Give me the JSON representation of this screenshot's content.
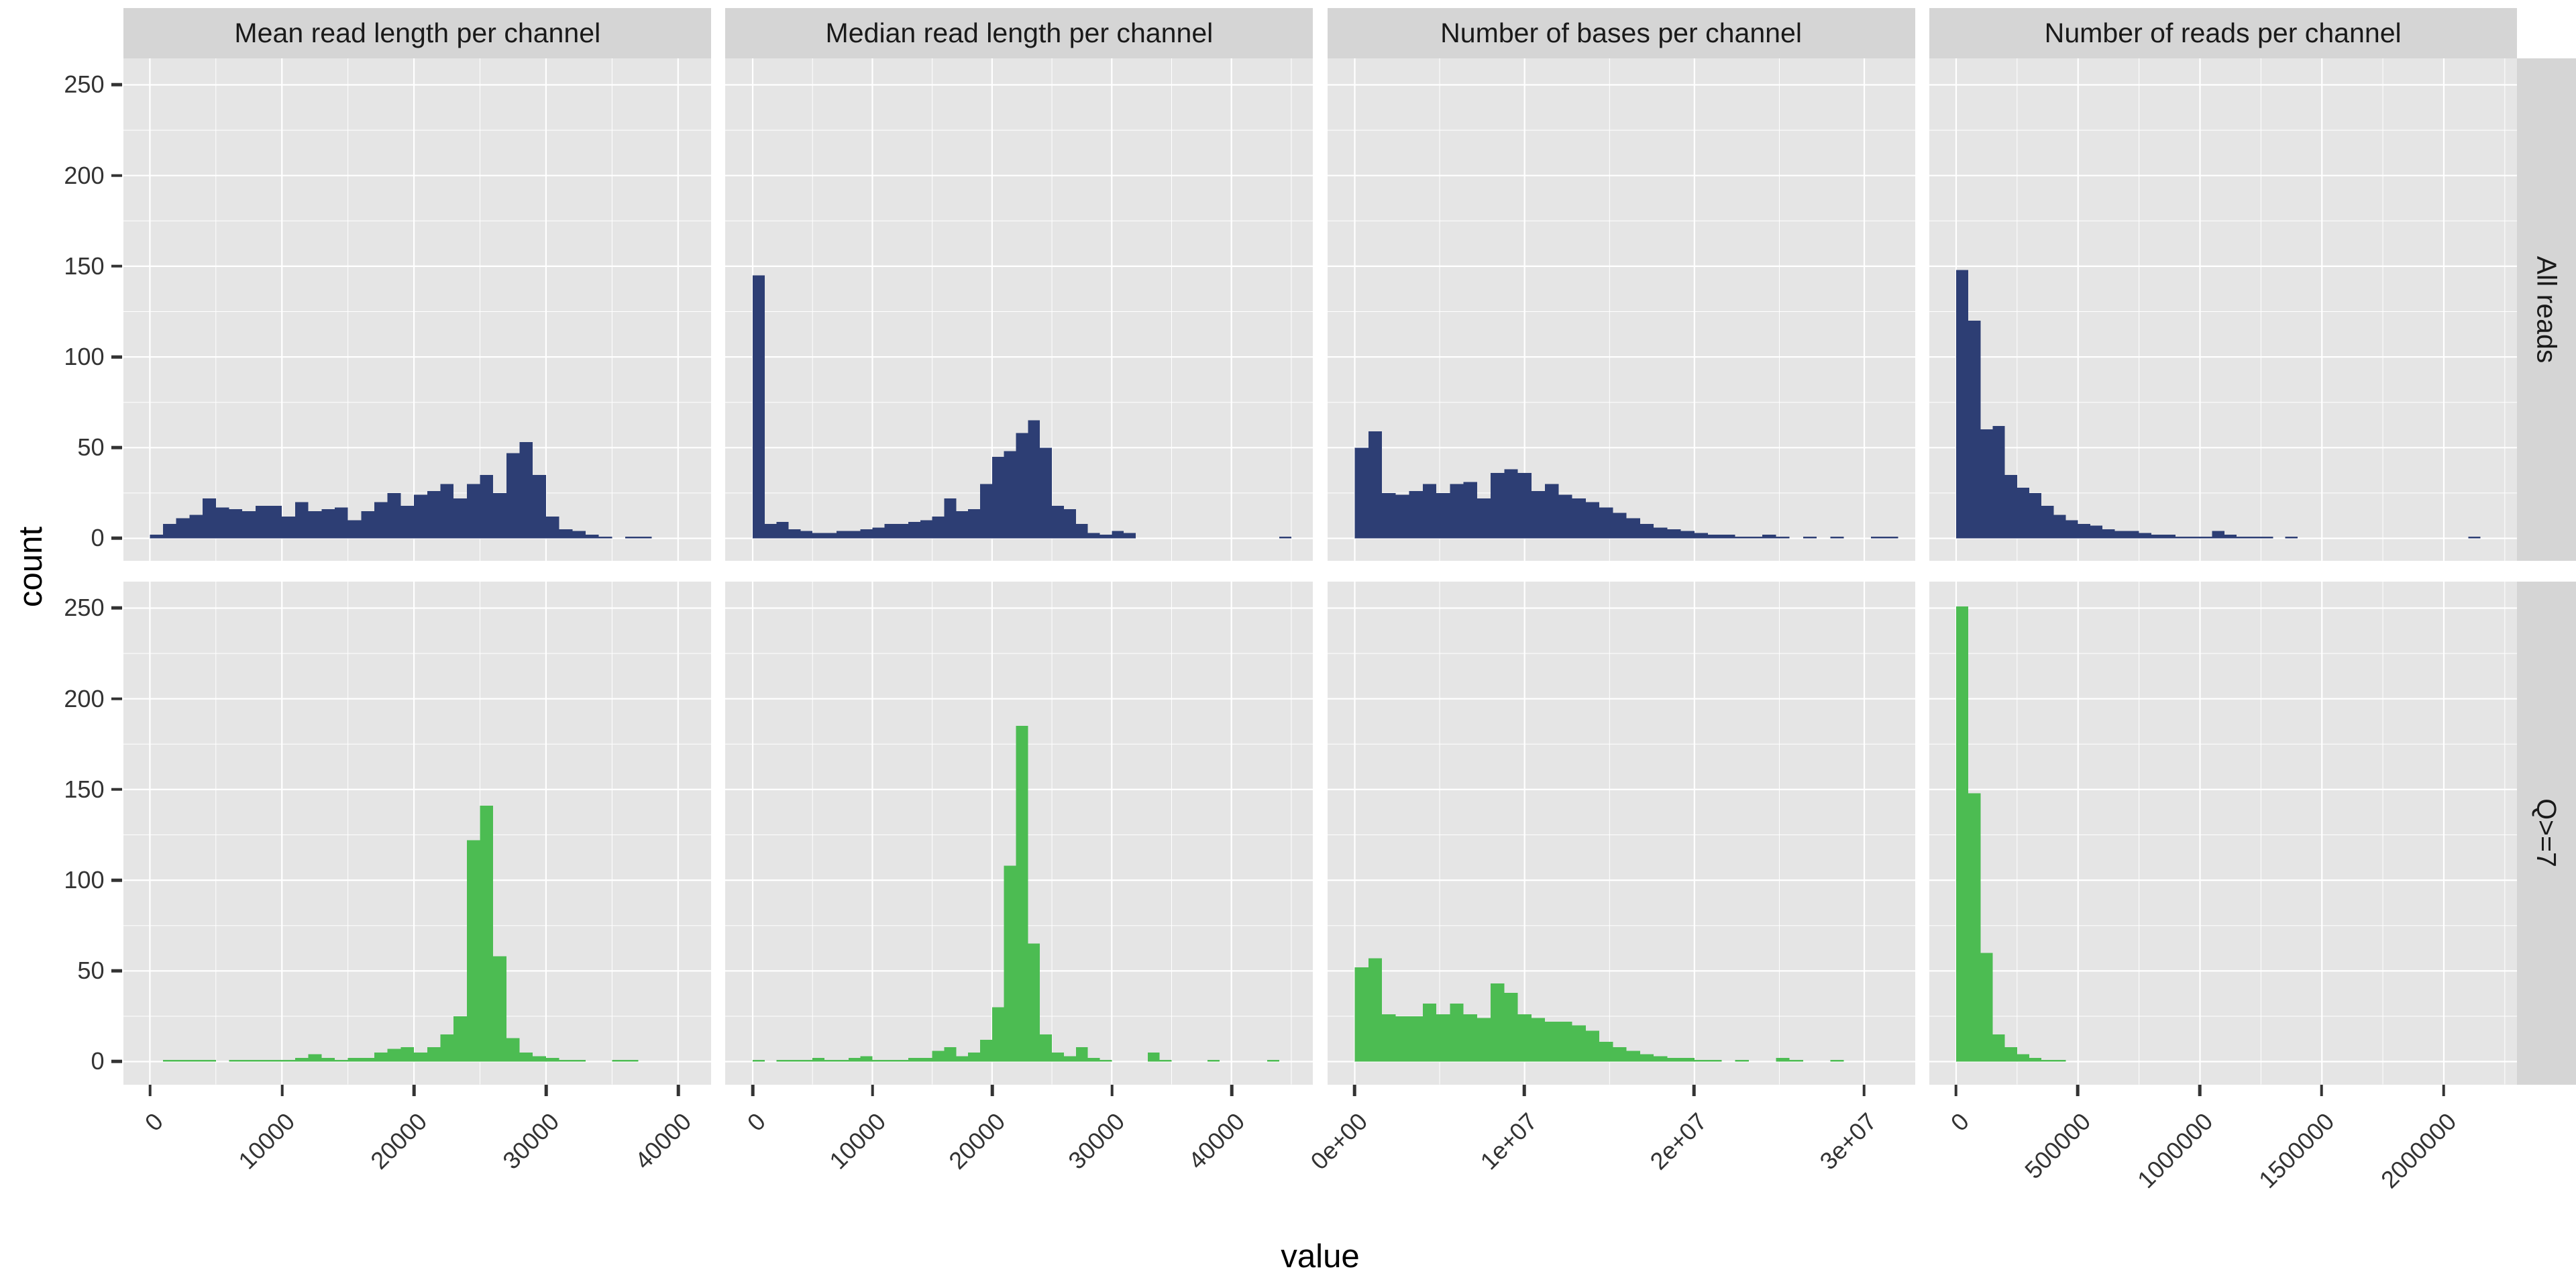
{
  "figure": {
    "description": "Faceted histograms of per-channel sequencing statistics",
    "x_title": "value",
    "y_title": "count"
  },
  "chart_data": {
    "type": "bar",
    "subtype": "faceted-histograms",
    "xlabel": "value",
    "ylabel": "count",
    "legend_position": "none",
    "grid": "on",
    "colors": {
      "panel_bg": "#e5e5e5",
      "strip_bg": "#d5d5d5",
      "gridline": "#ffffff",
      "tick_text": "#333333",
      "title_text": "#1a1a1a"
    },
    "y_axis": {
      "domain": [
        -12.6,
        264.6
      ],
      "ticks": [
        0,
        50,
        100,
        150,
        200,
        250
      ]
    },
    "rows": [
      {
        "label": "All reads",
        "color": "#2d3e74"
      },
      {
        "label": "Q>=7",
        "color": "#4cbc52"
      }
    ],
    "columns": [
      {
        "title": "Mean read length per channel",
        "x_domain": [
          -2000,
          42500
        ],
        "bin_start": 0,
        "bin_width": 1000,
        "x_ticks": [
          {
            "value": 0,
            "label": "0"
          },
          {
            "value": 10000,
            "label": "10000"
          },
          {
            "value": 20000,
            "label": "20000"
          },
          {
            "value": 30000,
            "label": "30000"
          },
          {
            "value": 40000,
            "label": "40000"
          }
        ]
      },
      {
        "title": "Median read length per channel",
        "x_domain": [
          -2300,
          46800
        ],
        "bin_start": 0,
        "bin_width": 1000,
        "x_ticks": [
          {
            "value": 0,
            "label": "0"
          },
          {
            "value": 10000,
            "label": "10000"
          },
          {
            "value": 20000,
            "label": "20000"
          },
          {
            "value": 30000,
            "label": "30000"
          },
          {
            "value": 40000,
            "label": "40000"
          }
        ]
      },
      {
        "title": "Number of bases per channel",
        "x_domain": [
          -1600000,
          33000000
        ],
        "bin_start": 0,
        "bin_width": 800000,
        "x_ticks": [
          {
            "value": 0,
            "label": "0e+00"
          },
          {
            "value": 10000000,
            "label": "1e+07"
          },
          {
            "value": 20000000,
            "label": "2e+07"
          },
          {
            "value": 30000000,
            "label": "3e+07"
          }
        ]
      },
      {
        "title": "Number of reads per channel",
        "x_domain": [
          -110000,
          2300000
        ],
        "bin_start": 0,
        "bin_width": 50000,
        "x_ticks": [
          {
            "value": 0,
            "label": "0"
          },
          {
            "value": 500000,
            "label": "500000"
          },
          {
            "value": 1000000,
            "label": "1000000"
          },
          {
            "value": 1500000,
            "label": "1500000"
          },
          {
            "value": 2000000,
            "label": "2000000"
          }
        ]
      }
    ],
    "panels": [
      {
        "row": 0,
        "col": 0,
        "counts": [
          2,
          8,
          11,
          13,
          22,
          17,
          16,
          15,
          18,
          18,
          12,
          20,
          15,
          16,
          17,
          10,
          15,
          20,
          25,
          18,
          24,
          26,
          30,
          22,
          30,
          35,
          25,
          47,
          53,
          35,
          12,
          5,
          4,
          2,
          1,
          0,
          1,
          1,
          0,
          0
        ]
      },
      {
        "row": 0,
        "col": 1,
        "counts": [
          145,
          8,
          9,
          5,
          4,
          3,
          3,
          4,
          4,
          5,
          6,
          8,
          8,
          9,
          10,
          12,
          22,
          15,
          16,
          30,
          45,
          48,
          58,
          65,
          50,
          18,
          16,
          8,
          3,
          2,
          4,
          3,
          0,
          0,
          0,
          0,
          0,
          0,
          0,
          0,
          0,
          0,
          0,
          0,
          1
        ]
      },
      {
        "row": 0,
        "col": 2,
        "counts": [
          50,
          59,
          25,
          24,
          26,
          30,
          25,
          30,
          31,
          22,
          36,
          38,
          36,
          26,
          30,
          24,
          22,
          20,
          17,
          14,
          11,
          8,
          6,
          5,
          4,
          3,
          2,
          2,
          1,
          1,
          2,
          1,
          0,
          1,
          0,
          1,
          0,
          0,
          1,
          1
        ]
      },
      {
        "row": 0,
        "col": 3,
        "counts": [
          148,
          120,
          60,
          62,
          35,
          28,
          25,
          18,
          13,
          10,
          8,
          7,
          5,
          4,
          4,
          3,
          2,
          2,
          1,
          1,
          1,
          4,
          2,
          1,
          1,
          1,
          0,
          1,
          0,
          0,
          0,
          0,
          0,
          0,
          0,
          0,
          0,
          0,
          0,
          0,
          0,
          0,
          1,
          0
        ]
      },
      {
        "row": 1,
        "col": 0,
        "counts": [
          0,
          1,
          1,
          1,
          1,
          0,
          1,
          1,
          1,
          1,
          1,
          2,
          4,
          2,
          1,
          2,
          2,
          5,
          7,
          8,
          5,
          8,
          15,
          25,
          122,
          141,
          58,
          13,
          5,
          3,
          2,
          1,
          1,
          0,
          0,
          1,
          1,
          0,
          0,
          0
        ]
      },
      {
        "row": 1,
        "col": 1,
        "counts": [
          1,
          0,
          1,
          1,
          1,
          2,
          1,
          1,
          2,
          3,
          1,
          1,
          1,
          2,
          2,
          6,
          8,
          3,
          5,
          12,
          30,
          108,
          185,
          65,
          15,
          5,
          3,
          8,
          2,
          1,
          0,
          0,
          0,
          5,
          1,
          0,
          0,
          0,
          1,
          0,
          0,
          0,
          0,
          1,
          0
        ]
      },
      {
        "row": 1,
        "col": 2,
        "counts": [
          52,
          57,
          26,
          25,
          25,
          32,
          26,
          32,
          26,
          24,
          43,
          38,
          26,
          24,
          22,
          22,
          20,
          17,
          11,
          8,
          6,
          4,
          3,
          2,
          2,
          1,
          1,
          0,
          1,
          0,
          0,
          2,
          1,
          0,
          0,
          1,
          0,
          0,
          0,
          0
        ]
      },
      {
        "row": 1,
        "col": 3,
        "counts": [
          251,
          148,
          60,
          15,
          8,
          4,
          2,
          1,
          1,
          0,
          0,
          0,
          0,
          0,
          0,
          0,
          0,
          0,
          0,
          0,
          0,
          0,
          0,
          0,
          0,
          0,
          0,
          0,
          0,
          0,
          0,
          0,
          0,
          0,
          0,
          0,
          0,
          0,
          0,
          0,
          0,
          0,
          0,
          0
        ]
      }
    ]
  }
}
